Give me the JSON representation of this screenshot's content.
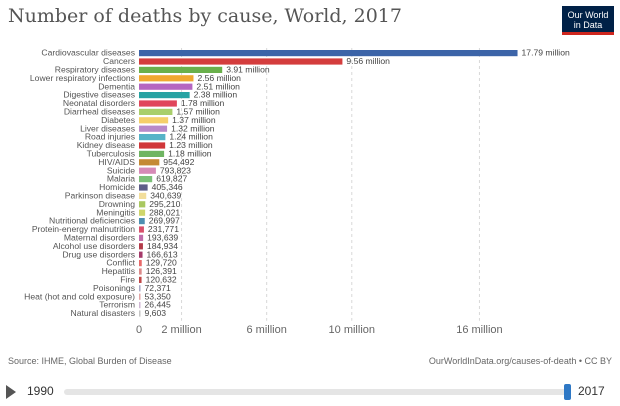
{
  "header": {
    "title": "Number of deaths by cause, World, 2017",
    "logo_line1": "Our World",
    "logo_line2": "in Data"
  },
  "footer": {
    "source": "Source: IHME, Global Burden of Disease",
    "url": "OurWorldInData.org/causes-of-death • CC BY"
  },
  "timeline": {
    "start": "1990",
    "end": "2017",
    "selected_fraction": 1.0
  },
  "chart_data": {
    "type": "bar",
    "orientation": "horizontal",
    "title": "Number of deaths by cause, World, 2017",
    "xlim": [
      0,
      18000000
    ],
    "x_ticks": [
      0,
      2000000,
      6000000,
      10000000,
      16000000
    ],
    "x_tick_labels": [
      "0",
      "2 million",
      "6 million",
      "10 million",
      "16 million"
    ],
    "grid": "vertical dashed",
    "categories": [
      "Cardiovascular diseases",
      "Cancers",
      "Respiratory diseases",
      "Lower respiratory infections",
      "Dementia",
      "Digestive diseases",
      "Neonatal disorders",
      "Diarrheal diseases",
      "Diabetes",
      "Liver diseases",
      "Road injuries",
      "Kidney disease",
      "Tuberculosis",
      "HIV/AIDS",
      "Suicide",
      "Malaria",
      "Homicide",
      "Parkinson disease",
      "Drowning",
      "Meningitis",
      "Nutritional deficiencies",
      "Protein-energy malnutrition",
      "Maternal disorders",
      "Alcohol use disorders",
      "Drug use disorders",
      "Conflict",
      "Hepatitis",
      "Fire",
      "Poisonings",
      "Heat (hot and cold exposure)",
      "Terrorism",
      "Natural disasters"
    ],
    "values": [
      17790000,
      9560000,
      3910000,
      2560000,
      2510000,
      2380000,
      1780000,
      1570000,
      1370000,
      1320000,
      1240000,
      1230000,
      1180000,
      954492,
      793823,
      619827,
      405346,
      340639,
      295210,
      288021,
      269997,
      231771,
      193639,
      184934,
      166613,
      129720,
      126391,
      120632,
      72371,
      53350,
      26445,
      9603
    ],
    "value_labels": [
      "17.79 million",
      "9.56 million",
      "3.91 million",
      "2.56 million",
      "2.51 million",
      "2.38 million",
      "1.78 million",
      "1.57 million",
      "1.37 million",
      "1.32 million",
      "1.24 million",
      "1.23 million",
      "1.18 million",
      "954,492",
      "793,823",
      "619,827",
      "405,346",
      "340,639",
      "295,210",
      "288,021",
      "269,997",
      "231,771",
      "193,639",
      "184,934",
      "166,613",
      "129,720",
      "126,391",
      "120,632",
      "72,371",
      "53,350",
      "26,445",
      "9,603"
    ],
    "colors": [
      "#3c64a8",
      "#d43d3d",
      "#6ab04c",
      "#f0a830",
      "#b565c1",
      "#27a3a3",
      "#e0465b",
      "#a9cf6b",
      "#f5d06a",
      "#b88ac9",
      "#56b3c8",
      "#d0373a",
      "#6fb562",
      "#c48a35",
      "#d68ab7",
      "#7cc079",
      "#5d5d88",
      "#f2de9c",
      "#a9c860",
      "#cfd66b",
      "#4e8fb1",
      "#d8506b",
      "#c06dab",
      "#b23a48",
      "#a53a6a",
      "#e86a6a",
      "#dc8a8a",
      "#c04848",
      "#a8a8c4",
      "#e2a4a4",
      "#d0b7d4",
      "#c6c6c6"
    ]
  }
}
